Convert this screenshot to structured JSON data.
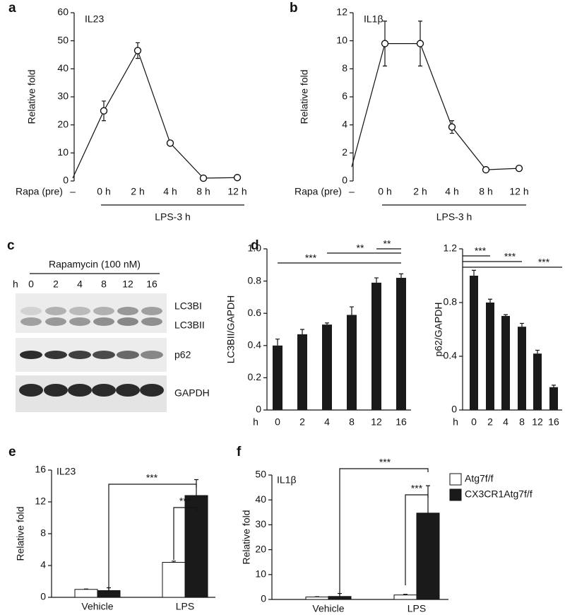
{
  "chart_data": [
    {
      "type": "line",
      "label": "a",
      "title": "IL23",
      "ylabel": "Relative fold",
      "xlabel": "Rapa (pre)",
      "group_label": "LPS-3 h",
      "categories": [
        "–",
        "0 h",
        "2 h",
        "4 h",
        "8 h",
        "12 h"
      ],
      "values": [
        1,
        25,
        46.5,
        13.5,
        1,
        1.2
      ],
      "errors": [
        0,
        3.5,
        2.8,
        0.6,
        0.3,
        0.3
      ],
      "color": "#111111",
      "ylim": [
        0,
        60
      ],
      "yticks": [
        0,
        10,
        20,
        30,
        40,
        50,
        60
      ]
    },
    {
      "type": "line",
      "label": "b",
      "title": "IL1β",
      "ylabel": "Relative fold",
      "xlabel": "Rapa (pre)",
      "group_label": "LPS-3 h",
      "categories": [
        "–",
        "0 h",
        "2 h",
        "4 h",
        "8 h",
        "12 h"
      ],
      "values": [
        1,
        9.8,
        9.8,
        3.85,
        0.8,
        0.9
      ],
      "errors": [
        0,
        1.6,
        1.6,
        0.45,
        0.1,
        0.12
      ],
      "color": "#111111",
      "ylim": [
        0,
        12
      ],
      "yticks": [
        0,
        2,
        4,
        6,
        8,
        10,
        12
      ]
    },
    {
      "type": "bar",
      "label": "d",
      "ylabel": "LC3BII/GAPDH",
      "xlabel": "h",
      "categories": [
        "0",
        "2",
        "4",
        "8",
        "12",
        "16"
      ],
      "values": [
        0.4,
        0.47,
        0.53,
        0.59,
        0.79,
        0.82
      ],
      "errors": [
        0.04,
        0.03,
        0.01,
        0.05,
        0.03,
        0.025
      ],
      "color": "#1a1a1a",
      "ylim": [
        0,
        1
      ],
      "yticks": [
        0,
        0.2,
        0.4,
        0.6,
        0.8,
        {
          "value": 1,
          "label": "1.0"
        }
      ],
      "annotations": [
        "***",
        "**",
        "**"
      ]
    },
    {
      "type": "bar",
      "ylabel": "p62/GAPDH",
      "xlabel": "h",
      "categories": [
        "0",
        "2",
        "4",
        "8",
        "12",
        "16"
      ],
      "values": [
        1.0,
        0.8,
        0.7,
        0.62,
        0.42,
        0.17
      ],
      "errors": [
        0.04,
        0.025,
        0.01,
        0.025,
        0.025,
        0.015
      ],
      "color": "#1a1a1a",
      "ylim": [
        0,
        1.2
      ],
      "yticks": [
        0,
        0.4,
        0.8,
        1.2
      ],
      "annotations": [
        "***",
        "***",
        "***"
      ]
    },
    {
      "type": "grouped-bar",
      "label": "e",
      "title": "IL23",
      "ylabel": "Relative fold",
      "categories": [
        "Vehicle",
        "LPS"
      ],
      "series": [
        {
          "name": "Atg7f/f",
          "color": "#ffffff",
          "values": [
            1.0,
            4.4
          ],
          "errors": [
            0.05,
            0.15
          ]
        },
        {
          "name": "CX3CR1Atg7f/f",
          "color": "#1a1a1a",
          "values": [
            0.85,
            12.8
          ],
          "errors": [
            0.35,
            2.0
          ]
        }
      ],
      "ylim": [
        0,
        16
      ],
      "yticks": [
        0,
        4,
        8,
        12,
        16
      ],
      "annotations": [
        "***",
        "***"
      ]
    },
    {
      "type": "grouped-bar",
      "label": "f",
      "title": "IL1β",
      "ylabel": "Relative fold",
      "categories": [
        "Vehicle",
        "LPS"
      ],
      "series": [
        {
          "name": "Atg7f/f",
          "color": "#ffffff",
          "values": [
            1.0,
            1.8
          ],
          "errors": [
            0.1,
            0.25
          ]
        },
        {
          "name": "CX3CR1Atg7f/f",
          "color": "#1a1a1a",
          "values": [
            1.2,
            34.7
          ],
          "errors": [
            1.2,
            11.0
          ]
        }
      ],
      "ylim": [
        0,
        50
      ],
      "yticks": [
        0,
        10,
        20,
        30,
        40,
        50
      ],
      "annotations": [
        "***",
        "***"
      ],
      "legend": "top-right"
    }
  ],
  "blot": {
    "label": "c",
    "treatment": "Rapamycin (100 nM)",
    "time_label": "h",
    "lanes": [
      "0",
      "2",
      "4",
      "8",
      "12",
      "16"
    ],
    "bands": [
      "LC3BI",
      "LC3BII",
      "p62",
      "GAPDH"
    ]
  }
}
